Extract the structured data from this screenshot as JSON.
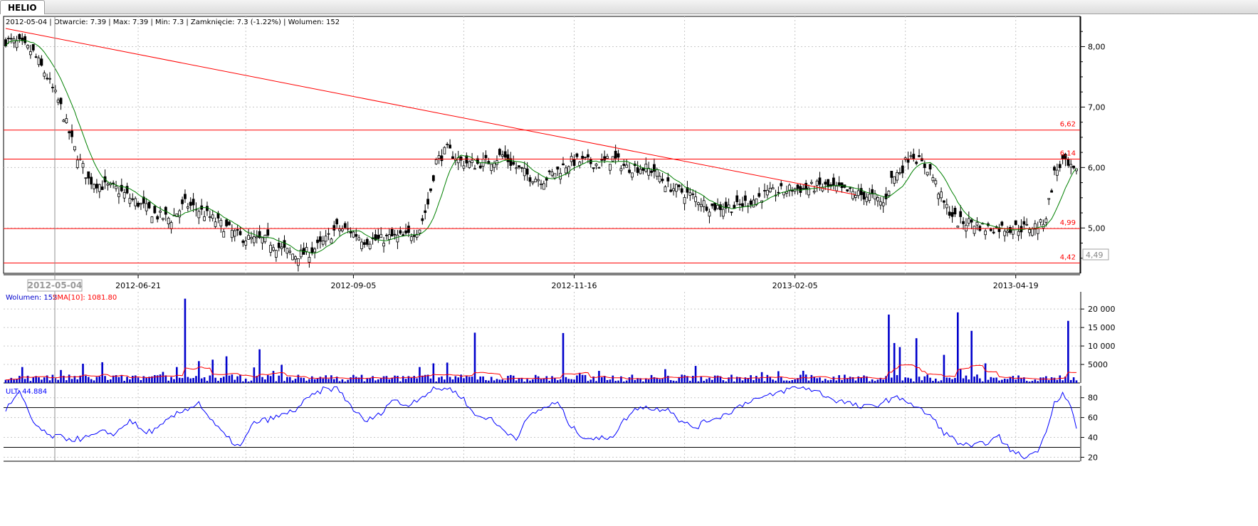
{
  "tab_label": "HELIO",
  "info_line": "2012-05-04 | Otwarcie: 7.39 | Max: 7.39 | Min: 7.3 | Zamknięcie: 7.3 (-1.22%)  | Wolumen: 152",
  "crosshair_date_label": "2012-05-04",
  "colors": {
    "background": "#ffffff",
    "grid": "#c8c8c8",
    "candle": "#000000",
    "sma_price": "#008000",
    "horizontal_lines": "#ff0000",
    "trend_line": "#ff0000",
    "volume": "#0000cc",
    "volume_sma": "#ff0000",
    "ult": "#0000ff",
    "level_label": "#ff0000"
  },
  "chart_data": [
    {
      "type": "candlestick",
      "x_axis_type": "date",
      "x_labels": [
        "2012-06-21",
        "2012-09-05",
        "2012-11-16",
        "2013-02-05",
        "2013-04-19"
      ],
      "y_ticks": [
        "8,00",
        "7,00",
        "6,00",
        "5,00"
      ],
      "ylim": [
        4.25,
        8.5
      ],
      "current_price_label": "4,49",
      "horizontal_levels": [
        {
          "value": 6.62,
          "label": "6,62"
        },
        {
          "value": 6.14,
          "label": "6,14"
        },
        {
          "value": 4.99,
          "label": "4,99"
        },
        {
          "value": 4.42,
          "label": "4,42"
        }
      ],
      "trend_line": {
        "from": {
          "date": "2012-05-04",
          "value": 8.3
        },
        "to": {
          "date": "2013-03-05",
          "value": 5.55
        }
      },
      "close_anchors": [
        [
          0,
          8.1
        ],
        [
          5,
          8.05
        ],
        [
          10,
          7.9
        ],
        [
          15,
          7.5
        ],
        [
          20,
          7.0
        ],
        [
          25,
          6.3
        ],
        [
          30,
          5.8
        ],
        [
          35,
          5.7
        ],
        [
          40,
          5.65
        ],
        [
          45,
          5.5
        ],
        [
          50,
          5.35
        ],
        [
          55,
          5.2
        ],
        [
          60,
          5.15
        ],
        [
          65,
          5.4
        ],
        [
          70,
          5.3
        ],
        [
          75,
          5.15
        ],
        [
          80,
          5.0
        ],
        [
          85,
          4.85
        ],
        [
          90,
          4.8
        ],
        [
          95,
          4.8
        ],
        [
          100,
          4.65
        ],
        [
          105,
          4.55
        ],
        [
          110,
          4.6
        ],
        [
          115,
          4.75
        ],
        [
          120,
          5.0
        ],
        [
          125,
          4.95
        ],
        [
          130,
          4.8
        ],
        [
          135,
          4.8
        ],
        [
          140,
          4.85
        ],
        [
          145,
          4.85
        ],
        [
          150,
          5.0
        ],
        [
          153,
          5.4
        ],
        [
          156,
          6.1
        ],
        [
          160,
          6.3
        ],
        [
          165,
          6.1
        ],
        [
          170,
          6.05
        ],
        [
          175,
          6.1
        ],
        [
          180,
          6.2
        ],
        [
          185,
          6.0
        ],
        [
          190,
          5.85
        ],
        [
          195,
          5.8
        ],
        [
          200,
          5.95
        ],
        [
          205,
          6.1
        ],
        [
          210,
          6.1
        ],
        [
          215,
          6.05
        ],
        [
          220,
          6.15
        ],
        [
          225,
          6.0
        ],
        [
          230,
          6.0
        ],
        [
          235,
          5.95
        ],
        [
          240,
          5.7
        ],
        [
          245,
          5.6
        ],
        [
          250,
          5.5
        ],
        [
          255,
          5.35
        ],
        [
          260,
          5.35
        ],
        [
          265,
          5.35
        ],
        [
          270,
          5.45
        ],
        [
          275,
          5.55
        ],
        [
          280,
          5.6
        ],
        [
          285,
          5.65
        ],
        [
          290,
          5.65
        ],
        [
          295,
          5.7
        ],
        [
          300,
          5.65
        ],
        [
          305,
          5.6
        ],
        [
          310,
          5.55
        ],
        [
          315,
          5.5
        ],
        [
          318,
          5.4
        ],
        [
          321,
          5.8
        ],
        [
          325,
          6.0
        ],
        [
          328,
          6.25
        ],
        [
          331,
          6.1
        ],
        [
          335,
          5.95
        ],
        [
          340,
          5.4
        ],
        [
          345,
          5.1
        ],
        [
          350,
          5.1
        ],
        [
          355,
          5.0
        ],
        [
          360,
          5.0
        ],
        [
          365,
          5.0
        ],
        [
          370,
          5.0
        ],
        [
          375,
          5.05
        ],
        [
          377,
          5.2
        ],
        [
          380,
          5.9
        ],
        [
          383,
          6.1
        ],
        [
          385,
          6.0
        ],
        [
          388,
          5.9
        ]
      ],
      "sma_label": "",
      "series_count": 389
    },
    {
      "type": "bar",
      "title": "Wolumen: 152",
      "sma_label": "SMA[10]: 1081.80",
      "y_ticks": [
        "20 000",
        "15 000",
        "10 000",
        "5000"
      ],
      "ylim": [
        0,
        23500
      ],
      "spikes": [
        [
          6,
          4300
        ],
        [
          20,
          3500
        ],
        [
          28,
          5200
        ],
        [
          35,
          5600
        ],
        [
          62,
          4300
        ],
        [
          65,
          22800
        ],
        [
          70,
          5900
        ],
        [
          75,
          6300
        ],
        [
          80,
          7200
        ],
        [
          92,
          9100
        ],
        [
          100,
          4900
        ],
        [
          150,
          4300
        ],
        [
          155,
          5300
        ],
        [
          160,
          5500
        ],
        [
          170,
          13600
        ],
        [
          202,
          13500
        ],
        [
          250,
          4600
        ],
        [
          320,
          18500
        ],
        [
          322,
          10800
        ],
        [
          324,
          9700
        ],
        [
          330,
          12100
        ],
        [
          340,
          7600
        ],
        [
          345,
          19100
        ],
        [
          350,
          14100
        ],
        [
          355,
          5300
        ],
        [
          385,
          16800
        ]
      ],
      "base_level": 1200
    },
    {
      "type": "line",
      "title": "ULT: 44.884",
      "y_ticks": [
        "80",
        "60",
        "40",
        "20"
      ],
      "ylim": [
        16,
        92
      ],
      "reference_lines": [
        70,
        30
      ],
      "anchors": [
        [
          0,
          68
        ],
        [
          5,
          85
        ],
        [
          10,
          55
        ],
        [
          15,
          42
        ],
        [
          20,
          40
        ],
        [
          25,
          38
        ],
        [
          30,
          40
        ],
        [
          35,
          45
        ],
        [
          40,
          44
        ],
        [
          45,
          58
        ],
        [
          50,
          45
        ],
        [
          55,
          48
        ],
        [
          60,
          60
        ],
        [
          65,
          68
        ],
        [
          70,
          75
        ],
        [
          75,
          55
        ],
        [
          80,
          40
        ],
        [
          85,
          30
        ],
        [
          90,
          55
        ],
        [
          95,
          58
        ],
        [
          100,
          62
        ],
        [
          105,
          68
        ],
        [
          110,
          80
        ],
        [
          115,
          88
        ],
        [
          120,
          90
        ],
        [
          125,
          72
        ],
        [
          130,
          56
        ],
        [
          135,
          62
        ],
        [
          140,
          78
        ],
        [
          145,
          72
        ],
        [
          150,
          80
        ],
        [
          155,
          88
        ],
        [
          160,
          90
        ],
        [
          165,
          82
        ],
        [
          170,
          62
        ],
        [
          175,
          60
        ],
        [
          180,
          48
        ],
        [
          185,
          40
        ],
        [
          190,
          62
        ],
        [
          195,
          70
        ],
        [
          200,
          75
        ],
        [
          205,
          50
        ],
        [
          210,
          40
        ],
        [
          215,
          38
        ],
        [
          220,
          42
        ],
        [
          225,
          60
        ],
        [
          230,
          72
        ],
        [
          235,
          68
        ],
        [
          240,
          70
        ],
        [
          245,
          55
        ],
        [
          250,
          50
        ],
        [
          255,
          58
        ],
        [
          260,
          62
        ],
        [
          265,
          70
        ],
        [
          270,
          78
        ],
        [
          275,
          80
        ],
        [
          280,
          85
        ],
        [
          285,
          90
        ],
        [
          290,
          90
        ],
        [
          295,
          85
        ],
        [
          300,
          78
        ],
        [
          305,
          75
        ],
        [
          310,
          70
        ],
        [
          315,
          72
        ],
        [
          320,
          78
        ],
        [
          325,
          80
        ],
        [
          330,
          70
        ],
        [
          335,
          62
        ],
        [
          340,
          45
        ],
        [
          345,
          35
        ],
        [
          350,
          30
        ],
        [
          355,
          35
        ],
        [
          360,
          40
        ],
        [
          365,
          25
        ],
        [
          370,
          20
        ],
        [
          375,
          30
        ],
        [
          380,
          75
        ],
        [
          383,
          85
        ],
        [
          386,
          70
        ],
        [
          388,
          50
        ]
      ]
    }
  ]
}
